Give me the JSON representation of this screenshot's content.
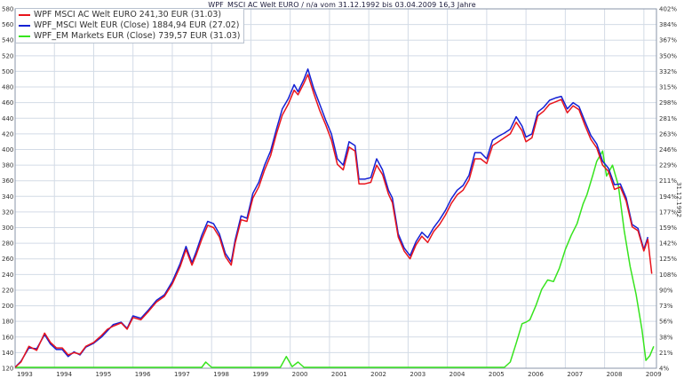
{
  "chart_data": {
    "type": "line",
    "title": "WPF_MSCI AC Welt EURO / n/a vom 31.12.1992 bis 03.04.2009 16,3 Jahre",
    "right_axis_label": "31.12.1992",
    "x_ticks": [
      "1993",
      "1994",
      "1995",
      "1996",
      "1997",
      "1998",
      "1999",
      "2000",
      "2001",
      "2002",
      "2003",
      "2004",
      "2005",
      "2006",
      "2007",
      "2008",
      "2009"
    ],
    "y_left_ticks": [
      120,
      140,
      160,
      180,
      200,
      220,
      240,
      260,
      280,
      300,
      320,
      340,
      360,
      380,
      400,
      420,
      440,
      460,
      480,
      500,
      520,
      540,
      560,
      580
    ],
    "y_right_ticks": [
      "4%",
      "21%",
      "38%",
      "56%",
      "73%",
      "90%",
      "108%",
      "125%",
      "142%",
      "159%",
      "177%",
      "194%",
      "211%",
      "229%",
      "246%",
      "263%",
      "281%",
      "298%",
      "315%",
      "332%",
      "350%",
      "367%",
      "384%",
      "402%"
    ],
    "y_left_range": [
      120,
      580
    ],
    "y_right_range": [
      "4%",
      "402%"
    ],
    "grid": true,
    "legend_position": "top-left",
    "colors": {
      "s1": "#e8141c",
      "s2": "#1421d4",
      "s3": "#37e41e",
      "grid": "#d3dbe6",
      "axis": "#8a96aa"
    },
    "series": [
      {
        "name": "WPF MSCI AC Welt EURO 241,30 EUR (31.03)",
        "color": "#e8141c",
        "x": [
          1993.0,
          1993.15,
          1993.35,
          1993.55,
          1993.75,
          1993.9,
          1994.05,
          1994.2,
          1994.35,
          1994.5,
          1994.65,
          1994.8,
          1995.0,
          1995.2,
          1995.35,
          1995.5,
          1995.7,
          1995.85,
          1996.0,
          1996.2,
          1996.4,
          1996.6,
          1996.8,
          1997.0,
          1997.2,
          1997.35,
          1997.5,
          1997.6,
          1997.75,
          1997.9,
          1998.05,
          1998.2,
          1998.35,
          1998.5,
          1998.6,
          1998.75,
          1998.9,
          1999.05,
          1999.2,
          1999.35,
          1999.5,
          1999.65,
          1999.8,
          1999.95,
          2000.1,
          2000.2,
          2000.35,
          2000.45,
          2000.6,
          2000.75,
          2000.9,
          2001.05,
          2001.2,
          2001.35,
          2001.5,
          2001.65,
          2001.75,
          2001.9,
          2002.05,
          2002.2,
          2002.35,
          2002.5,
          2002.6,
          2002.75,
          2002.9,
          2003.05,
          2003.2,
          2003.35,
          2003.5,
          2003.65,
          2003.8,
          2003.95,
          2004.1,
          2004.25,
          2004.4,
          2004.55,
          2004.7,
          2004.85,
          2005.0,
          2005.15,
          2005.3,
          2005.45,
          2005.6,
          2005.75,
          2005.9,
          2006.0,
          2006.15,
          2006.3,
          2006.45,
          2006.6,
          2006.75,
          2006.9,
          2007.05,
          2007.2,
          2007.35,
          2007.5,
          2007.65,
          2007.8,
          2007.95,
          2008.1,
          2008.25,
          2008.4,
          2008.55,
          2008.7,
          2008.85,
          2009.0,
          2009.1,
          2009.2
        ],
        "values": [
          120,
          128,
          148,
          143,
          165,
          153,
          146,
          146,
          137,
          140,
          138,
          148,
          153,
          162,
          170,
          174,
          178,
          170,
          185,
          182,
          193,
          205,
          212,
          228,
          250,
          272,
          252,
          264,
          285,
          303,
          300,
          288,
          263,
          252,
          280,
          310,
          308,
          338,
          352,
          374,
          392,
          420,
          444,
          458,
          476,
          470,
          485,
          496,
          472,
          450,
          432,
          412,
          381,
          374,
          403,
          398,
          356,
          356,
          358,
          380,
          368,
          343,
          332,
          288,
          270,
          260,
          278,
          289,
          281,
          295,
          304,
          316,
          331,
          342,
          348,
          361,
          388,
          388,
          382,
          405,
          410,
          415,
          420,
          435,
          424,
          410,
          415,
          443,
          449,
          458,
          461,
          464,
          447,
          456,
          451,
          431,
          413,
          402,
          380,
          372,
          349,
          352,
          334,
          301,
          296,
          270,
          285,
          241
        ]
      },
      {
        "name": "WPF_MSCI Welt EUR (Close) 1884,94 EUR (27.02)",
        "color": "#1421d4",
        "x": [
          1993.0,
          1993.15,
          1993.35,
          1993.55,
          1993.75,
          1993.9,
          1994.05,
          1994.2,
          1994.35,
          1994.5,
          1994.65,
          1994.8,
          1995.0,
          1995.2,
          1995.35,
          1995.5,
          1995.7,
          1995.85,
          1996.0,
          1996.2,
          1996.4,
          1996.6,
          1996.8,
          1997.0,
          1997.2,
          1997.35,
          1997.5,
          1997.6,
          1997.75,
          1997.9,
          1998.05,
          1998.2,
          1998.35,
          1998.5,
          1998.6,
          1998.75,
          1998.9,
          1999.05,
          1999.2,
          1999.35,
          1999.5,
          1999.65,
          1999.8,
          1999.95,
          2000.1,
          2000.2,
          2000.35,
          2000.45,
          2000.6,
          2000.75,
          2000.9,
          2001.05,
          2001.2,
          2001.35,
          2001.5,
          2001.65,
          2001.75,
          2001.9,
          2002.05,
          2002.2,
          2002.35,
          2002.5,
          2002.6,
          2002.75,
          2002.9,
          2003.05,
          2003.2,
          2003.35,
          2003.5,
          2003.65,
          2003.8,
          2003.95,
          2004.1,
          2004.25,
          2004.4,
          2004.55,
          2004.7,
          2004.85,
          2005.0,
          2005.15,
          2005.3,
          2005.45,
          2005.6,
          2005.75,
          2005.9,
          2006.0,
          2006.15,
          2006.3,
          2006.45,
          2006.6,
          2006.75,
          2006.9,
          2007.05,
          2007.2,
          2007.35,
          2007.5,
          2007.65,
          2007.8,
          2007.95,
          2008.1,
          2008.25,
          2008.4,
          2008.55,
          2008.7,
          2008.85,
          2009.0,
          2009.1
        ],
        "values": [
          121,
          129,
          146,
          145,
          163,
          151,
          144,
          144,
          135,
          141,
          137,
          147,
          152,
          160,
          168,
          176,
          179,
          171,
          187,
          184,
          195,
          207,
          214,
          231,
          254,
          276,
          255,
          268,
          290,
          308,
          305,
          292,
          267,
          256,
          284,
          315,
          312,
          344,
          358,
          380,
          398,
          426,
          452,
          465,
          483,
          474,
          490,
          503,
          478,
          458,
          438,
          420,
          388,
          380,
          410,
          405,
          362,
          362,
          364,
          388,
          374,
          348,
          338,
          292,
          274,
          264,
          282,
          294,
          287,
          300,
          310,
          322,
          337,
          348,
          354,
          367,
          396,
          396,
          388,
          412,
          417,
          421,
          426,
          442,
          430,
          416,
          420,
          448,
          454,
          463,
          466,
          468,
          452,
          460,
          455,
          436,
          418,
          407,
          385,
          376,
          355,
          356,
          338,
          304,
          299,
          272,
          288
        ]
      },
      {
        "name": "WPF_EM Markets EUR (Close) 739,57 EUR (31.03)",
        "color": "#37e41e",
        "x": [
          1993.0,
          1993.15,
          1993.3,
          1993.45,
          1993.6,
          1993.75,
          1993.9,
          1994.05,
          1994.2,
          1994.35,
          1994.5,
          1994.65,
          1994.8,
          1994.95,
          1995.1,
          1995.25,
          1995.4,
          1995.55,
          1995.7,
          1995.85,
          1996.0,
          1996.15,
          1996.3,
          1996.45,
          1996.6,
          1996.75,
          1996.9,
          1997.05,
          1997.2,
          1997.3,
          1997.45,
          1997.6,
          1997.75,
          1997.85,
          1998.0,
          1998.15,
          1998.3,
          1998.45,
          1998.55,
          1998.7,
          1998.85,
          1999.0,
          1999.15,
          1999.3,
          1999.45,
          1999.6,
          1999.75,
          1999.9,
          2000.05,
          2000.2,
          2000.35,
          2000.5,
          2000.65,
          2000.8,
          2000.95,
          2001.1,
          2001.25,
          2001.4,
          2001.55,
          2001.7,
          2001.85,
          2002.0,
          2002.15,
          2002.3,
          2002.45,
          2002.6,
          2002.75,
          2002.9,
          2003.05,
          2003.2,
          2003.35,
          2003.5,
          2003.65,
          2003.8,
          2003.95,
          2004.1,
          2004.25,
          2004.4,
          2004.55,
          2004.7,
          2004.85,
          2005.0,
          2005.15,
          2005.3,
          2005.45,
          2005.6,
          2005.75,
          2005.9,
          2006.0,
          2006.1,
          2006.25,
          2006.4,
          2006.55,
          2006.7,
          2006.85,
          2007.0,
          2007.15,
          2007.3,
          2007.45,
          2007.55,
          2007.7,
          2007.8,
          2007.95,
          2008.05,
          2008.2,
          2008.35,
          2008.5,
          2008.65,
          2008.8,
          2008.95,
          2009.05,
          2009.15,
          2009.25
        ],
        "values": [
          -2,
          -2,
          9,
          27,
          40,
          52,
          84,
          100,
          103,
          90,
          93,
          71,
          85,
          96,
          80,
          72,
          64,
          34,
          26,
          39,
          50,
          62,
          72,
          58,
          75,
          62,
          71,
          82,
          98,
          107,
          112,
          120,
          112,
          128,
          106,
          94,
          70,
          58,
          38,
          -50,
          -32,
          22,
          58,
          75,
          95,
          114,
          120,
          135,
          122,
          128,
          112,
          103,
          105,
          95,
          72,
          53,
          50,
          62,
          80,
          58,
          35,
          80,
          85,
          104,
          96,
          82,
          75,
          55,
          35,
          20,
          42,
          38,
          56,
          78,
          65,
          85,
          104,
          93,
          97,
          117,
          96,
          92,
          93,
          112,
          121,
          128,
          152,
          177,
          179,
          182,
          200,
          221,
          233,
          231,
          248,
          272,
          290,
          305,
          330,
          342,
          367,
          385,
          398,
          366,
          380,
          354,
          296,
          250,
          215,
          170,
          130,
          136,
          148
        ]
      }
    ]
  }
}
